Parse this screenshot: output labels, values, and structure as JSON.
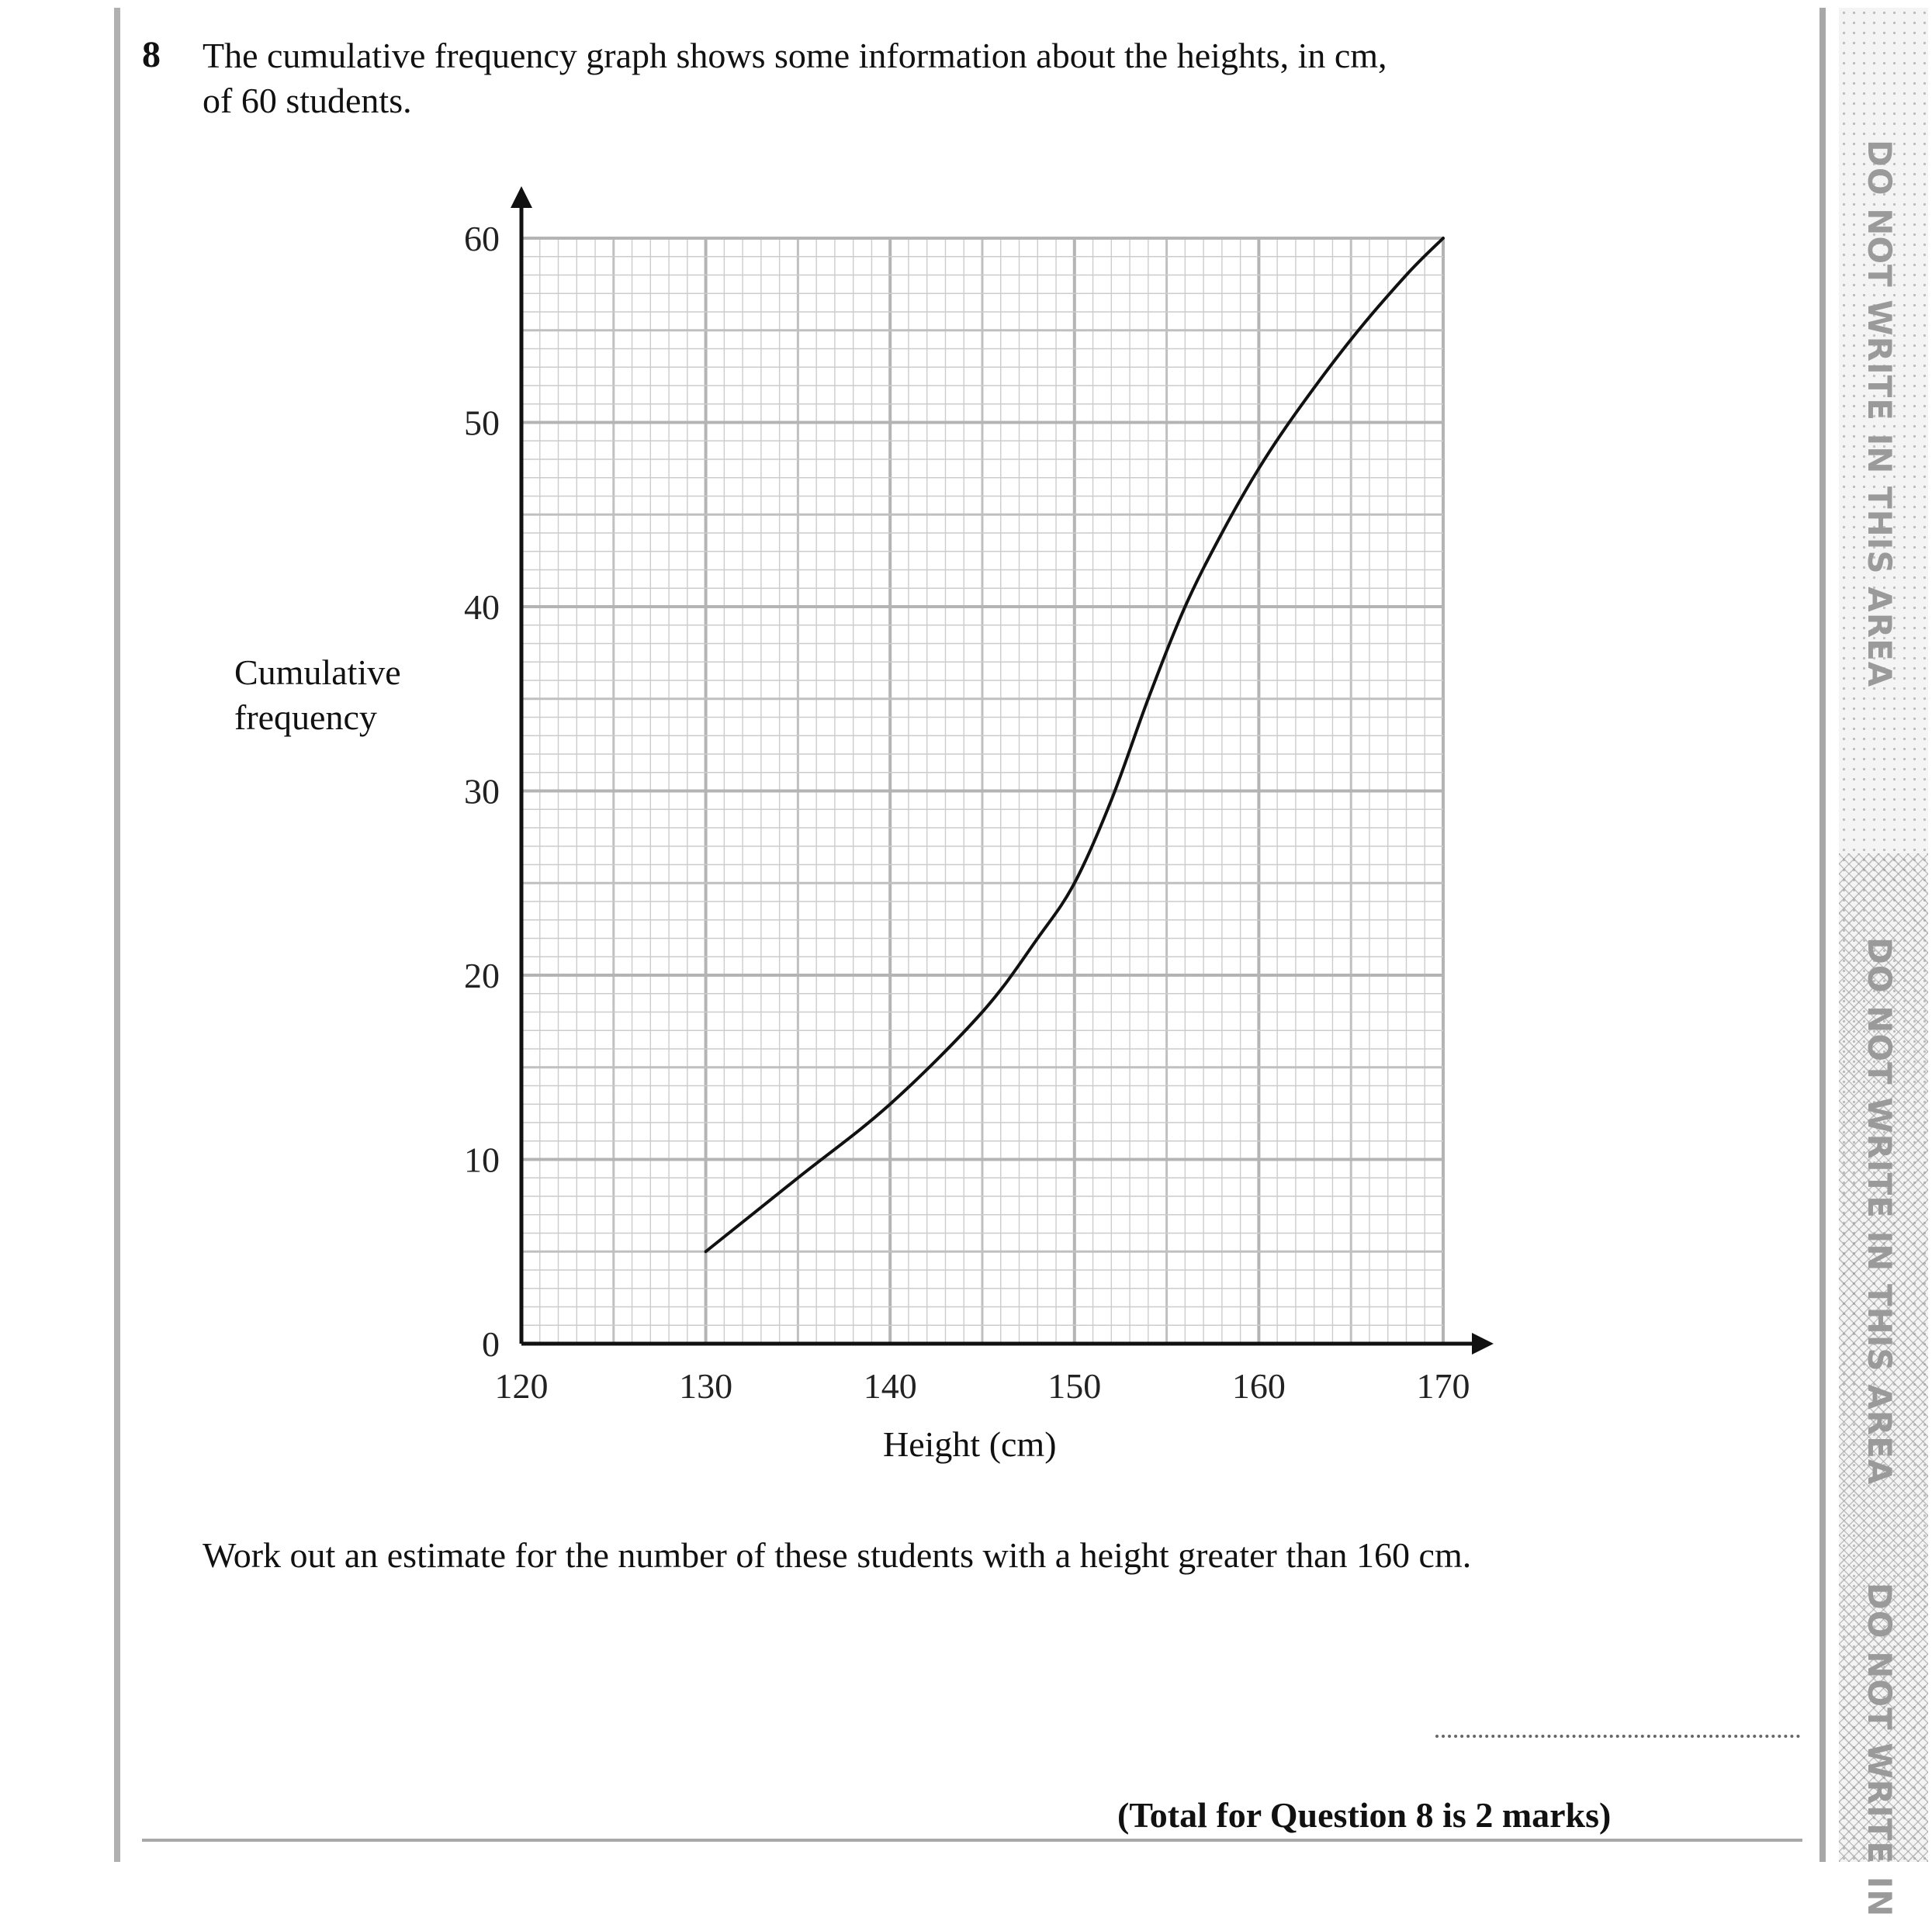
{
  "question": {
    "number": "8",
    "line1": "The cumulative frequency graph shows some information about the heights, in cm,",
    "line2": "of 60 students.",
    "instruction": "Work out an estimate for the number of these students with a height greater than 160 cm.",
    "total": "(Total for Question 8 is 2 marks)"
  },
  "margin": {
    "text1": "DO NOT WRITE IN THIS AREA",
    "text2": "DO NOT WRITE IN THIS AREA",
    "text3": "DO NOT WRITE IN"
  },
  "chart_data": {
    "type": "line",
    "title": "",
    "xlabel": "Height (cm)",
    "ylabel_line1": "Cumulative",
    "ylabel_line2": "frequency",
    "xlim": [
      120,
      170
    ],
    "ylim": [
      0,
      60
    ],
    "xticks": [
      120,
      130,
      140,
      150,
      160,
      170
    ],
    "yticks": [
      0,
      10,
      20,
      30,
      40,
      50,
      60
    ],
    "grid": true,
    "series": [
      {
        "x": [
          130,
          135,
          140,
          145,
          148,
          150,
          152,
          154,
          156,
          158,
          160,
          162,
          165,
          168,
          170
        ],
        "y": [
          5,
          9,
          13,
          18,
          22,
          25,
          29.5,
          35,
          40,
          44,
          47.5,
          50.5,
          54.5,
          58,
          60
        ]
      }
    ]
  }
}
